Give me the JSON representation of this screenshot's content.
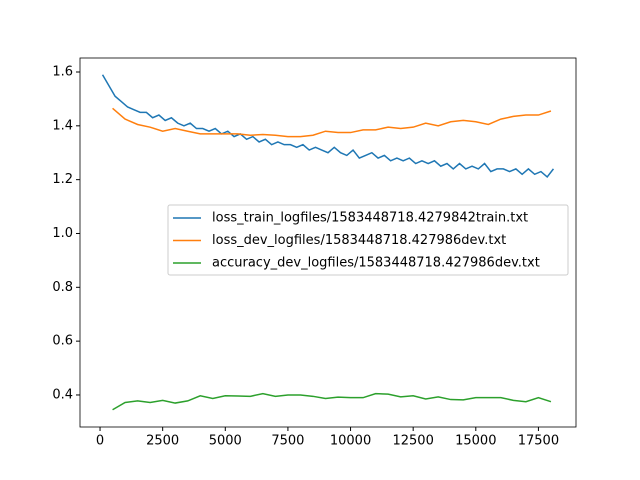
{
  "chart_data": {
    "type": "line",
    "xlim": [
      -800,
      19000
    ],
    "xticks": [
      0,
      2500,
      5000,
      7500,
      10000,
      12500,
      15000,
      17500
    ],
    "ylim": [
      0.281,
      1.652
    ],
    "yticks": [
      0.4,
      0.6,
      0.8,
      {
        "value": 1,
        "label": "1.0"
      },
      1.2,
      1.4,
      1.6
    ],
    "legend": "center right",
    "series": [
      {
        "name": "loss_train_logfiles/1583448718.4279842train.txt",
        "color": "#1f77b4",
        "x": [
          100,
          350,
          600,
          850,
          1100,
          1350,
          1600,
          1850,
          2100,
          2350,
          2600,
          2850,
          3100,
          3350,
          3600,
          3850,
          4100,
          4350,
          4600,
          4850,
          5100,
          5350,
          5600,
          5850,
          6100,
          6350,
          6600,
          6850,
          7100,
          7350,
          7600,
          7850,
          8100,
          8350,
          8600,
          8850,
          9100,
          9350,
          9600,
          9850,
          10100,
          10350,
          10600,
          10850,
          11100,
          11350,
          11600,
          11850,
          12100,
          12350,
          12600,
          12850,
          13100,
          13350,
          13600,
          13850,
          14100,
          14350,
          14600,
          14850,
          15100,
          15350,
          15600,
          15850,
          16100,
          16350,
          16600,
          16850,
          17100,
          17350,
          17600,
          17850,
          18100
        ],
        "values": [
          1.59,
          1.55,
          1.51,
          1.49,
          1.47,
          1.46,
          1.45,
          1.45,
          1.43,
          1.44,
          1.42,
          1.43,
          1.41,
          1.4,
          1.41,
          1.39,
          1.39,
          1.38,
          1.39,
          1.37,
          1.38,
          1.36,
          1.37,
          1.35,
          1.36,
          1.34,
          1.35,
          1.33,
          1.34,
          1.33,
          1.33,
          1.32,
          1.33,
          1.31,
          1.32,
          1.31,
          1.3,
          1.32,
          1.3,
          1.29,
          1.31,
          1.28,
          1.29,
          1.3,
          1.28,
          1.29,
          1.27,
          1.28,
          1.27,
          1.28,
          1.26,
          1.27,
          1.26,
          1.27,
          1.25,
          1.26,
          1.24,
          1.26,
          1.24,
          1.25,
          1.24,
          1.26,
          1.23,
          1.24,
          1.24,
          1.23,
          1.24,
          1.22,
          1.24,
          1.22,
          1.23,
          1.21,
          1.24
        ]
      },
      {
        "name": "loss_dev_logfiles/1583448718.427986dev.txt",
        "color": "#ff7f0e",
        "x": [
          500,
          1000,
          1500,
          2000,
          2500,
          3000,
          3500,
          4000,
          4500,
          5000,
          5500,
          6000,
          6500,
          7000,
          7500,
          8000,
          8500,
          9000,
          9500,
          10000,
          10500,
          11000,
          11500,
          12000,
          12500,
          13000,
          13500,
          14000,
          14500,
          15000,
          15500,
          16000,
          16500,
          17000,
          17500,
          18000
        ],
        "values": [
          1.465,
          1.425,
          1.405,
          1.395,
          1.38,
          1.39,
          1.38,
          1.37,
          1.37,
          1.37,
          1.37,
          1.365,
          1.368,
          1.365,
          1.36,
          1.36,
          1.365,
          1.38,
          1.375,
          1.375,
          1.385,
          1.385,
          1.395,
          1.39,
          1.395,
          1.41,
          1.4,
          1.415,
          1.42,
          1.415,
          1.405,
          1.425,
          1.435,
          1.44,
          1.44,
          1.455
        ]
      },
      {
        "name": "accuracy_dev_logfiles/1583448718.427986dev.txt",
        "color": "#2ca02c",
        "x": [
          500,
          1000,
          1500,
          2000,
          2500,
          3000,
          3500,
          4000,
          4500,
          5000,
          5500,
          6000,
          6500,
          7000,
          7500,
          8000,
          8500,
          9000,
          9500,
          10000,
          10500,
          11000,
          11500,
          12000,
          12500,
          13000,
          13500,
          14000,
          14500,
          15000,
          15500,
          16000,
          16500,
          17000,
          17500,
          18000
        ],
        "values": [
          0.345,
          0.372,
          0.378,
          0.372,
          0.38,
          0.37,
          0.378,
          0.397,
          0.387,
          0.397,
          0.396,
          0.395,
          0.405,
          0.395,
          0.4,
          0.4,
          0.395,
          0.387,
          0.392,
          0.39,
          0.39,
          0.405,
          0.403,
          0.393,
          0.397,
          0.385,
          0.393,
          0.383,
          0.382,
          0.39,
          0.39,
          0.39,
          0.38,
          0.375,
          0.39,
          0.375
        ]
      }
    ]
  }
}
